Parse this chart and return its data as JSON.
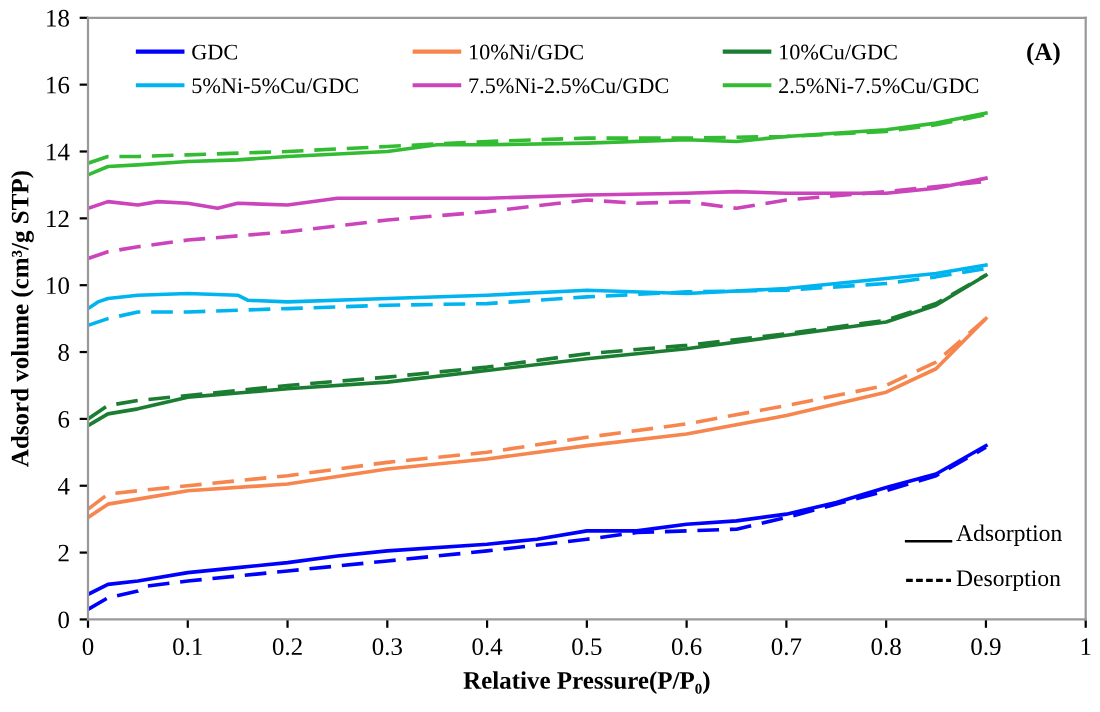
{
  "chart_data": {
    "type": "line",
    "xlabel": "Relative Pressure(P/P₀)",
    "ylabel": "Adsord volume (cm³/g STP)",
    "xlim": [
      0,
      1
    ],
    "xticks": [
      0,
      0.1,
      0.2,
      0.3,
      0.4,
      0.5,
      0.6,
      0.7,
      0.8,
      0.9,
      1
    ],
    "ylim": [
      0,
      18
    ],
    "yticks": [
      0,
      2,
      4,
      6,
      8,
      10,
      12,
      14,
      16,
      18
    ],
    "grid": false,
    "legend": "top",
    "marker": "none",
    "annotations": [
      "(A)",
      "Adsorption",
      "Desorption"
    ],
    "series": [
      {
        "name": "GDC",
        "color": "#0000ff",
        "line_style": "solid",
        "x": [
          0,
          0.02,
          0.05,
          0.1,
          0.15,
          0.2,
          0.25,
          0.3,
          0.4,
          0.45,
          0.5,
          0.55,
          0.6,
          0.65,
          0.7,
          0.75,
          0.8,
          0.85,
          0.9
        ],
        "values": [
          0.75,
          1.05,
          1.15,
          1.4,
          1.55,
          1.7,
          1.9,
          2.05,
          2.25,
          2.4,
          2.65,
          2.65,
          2.85,
          2.95,
          3.15,
          3.5,
          3.95,
          4.35,
          5.2
        ]
      },
      {
        "color": "#0000ff",
        "line_style": "dashed",
        "x": [
          0,
          0.02,
          0.05,
          0.06,
          0.1,
          0.2,
          0.3,
          0.4,
          0.5,
          0.55,
          0.65,
          0.7,
          0.8,
          0.85,
          0.9
        ],
        "values": [
          0.3,
          0.65,
          0.85,
          1.0,
          1.15,
          1.45,
          1.75,
          2.05,
          2.4,
          2.6,
          2.7,
          3.05,
          3.85,
          4.3,
          5.15
        ]
      },
      {
        "name": "10%Ni/GDC",
        "color": "#f7864e",
        "line_style": "solid",
        "x": [
          0,
          0.02,
          0.05,
          0.1,
          0.2,
          0.3,
          0.4,
          0.5,
          0.6,
          0.7,
          0.8,
          0.85,
          0.9
        ],
        "values": [
          3.05,
          3.45,
          3.6,
          3.85,
          4.05,
          4.5,
          4.8,
          5.2,
          5.55,
          6.1,
          6.8,
          7.5,
          9.0
        ]
      },
      {
        "color": "#f7864e",
        "line_style": "dashed",
        "x": [
          0,
          0.02,
          0.05,
          0.1,
          0.2,
          0.3,
          0.4,
          0.5,
          0.6,
          0.7,
          0.8,
          0.85,
          0.9
        ],
        "values": [
          3.3,
          3.75,
          3.85,
          4.0,
          4.3,
          4.7,
          5.0,
          5.45,
          5.85,
          6.4,
          7.0,
          7.7,
          9.0
        ]
      },
      {
        "name": "10%Cu/GDC",
        "color": "#1a7d32",
        "line_style": "solid",
        "x": [
          0,
          0.02,
          0.05,
          0.1,
          0.2,
          0.3,
          0.4,
          0.5,
          0.6,
          0.7,
          0.8,
          0.85,
          0.9
        ],
        "values": [
          5.8,
          6.15,
          6.3,
          6.65,
          6.9,
          7.1,
          7.45,
          7.8,
          8.1,
          8.5,
          8.9,
          9.4,
          10.3
        ]
      },
      {
        "color": "#1a7d32",
        "line_style": "dashed",
        "x": [
          0,
          0.02,
          0.05,
          0.1,
          0.2,
          0.3,
          0.4,
          0.5,
          0.6,
          0.7,
          0.8,
          0.85,
          0.9
        ],
        "values": [
          6.0,
          6.4,
          6.55,
          6.7,
          7.0,
          7.25,
          7.55,
          7.95,
          8.2,
          8.55,
          8.95,
          9.45,
          10.3
        ]
      },
      {
        "name": "5%Ni-5%Cu/GDC",
        "color": "#00b4f0",
        "line_style": "solid",
        "x": [
          0,
          0.01,
          0.02,
          0.05,
          0.1,
          0.15,
          0.16,
          0.2,
          0.3,
          0.4,
          0.5,
          0.6,
          0.7,
          0.8,
          0.85,
          0.9
        ],
        "values": [
          9.3,
          9.5,
          9.6,
          9.7,
          9.75,
          9.7,
          9.55,
          9.5,
          9.6,
          9.7,
          9.85,
          9.75,
          9.9,
          10.2,
          10.35,
          10.6
        ]
      },
      {
        "color": "#00b4f0",
        "line_style": "dashed",
        "x": [
          0,
          0.02,
          0.05,
          0.1,
          0.2,
          0.3,
          0.4,
          0.5,
          0.6,
          0.7,
          0.8,
          0.85,
          0.9
        ],
        "values": [
          8.8,
          9.0,
          9.2,
          9.2,
          9.3,
          9.4,
          9.45,
          9.65,
          9.8,
          9.85,
          10.05,
          10.25,
          10.5
        ]
      },
      {
        "name": "7.5%Ni-2.5%Cu/GDC",
        "color": "#cc44bb",
        "line_style": "solid",
        "x": [
          0,
          0.02,
          0.05,
          0.07,
          0.1,
          0.13,
          0.15,
          0.2,
          0.25,
          0.3,
          0.4,
          0.5,
          0.6,
          0.65,
          0.7,
          0.8,
          0.85,
          0.9
        ],
        "values": [
          12.3,
          12.5,
          12.4,
          12.5,
          12.45,
          12.3,
          12.45,
          12.4,
          12.6,
          12.6,
          12.6,
          12.7,
          12.75,
          12.8,
          12.75,
          12.75,
          12.9,
          13.2
        ]
      },
      {
        "color": "#cc44bb",
        "line_style": "dashed",
        "x": [
          0,
          0.02,
          0.05,
          0.1,
          0.2,
          0.3,
          0.4,
          0.5,
          0.55,
          0.6,
          0.65,
          0.7,
          0.8,
          0.9
        ],
        "values": [
          10.8,
          11.0,
          11.15,
          11.35,
          11.6,
          11.95,
          12.2,
          12.55,
          12.45,
          12.5,
          12.3,
          12.55,
          12.8,
          13.1
        ]
      },
      {
        "name": "2.5%Ni-7.5%Cu/GDC",
        "color": "#33bb33",
        "line_style": "solid",
        "x": [
          0,
          0.02,
          0.05,
          0.1,
          0.15,
          0.2,
          0.3,
          0.35,
          0.4,
          0.5,
          0.6,
          0.65,
          0.7,
          0.8,
          0.85,
          0.9
        ],
        "values": [
          13.3,
          13.55,
          13.6,
          13.7,
          13.75,
          13.85,
          14.0,
          14.2,
          14.2,
          14.25,
          14.35,
          14.3,
          14.45,
          14.65,
          14.85,
          15.15
        ]
      },
      {
        "color": "#33bb33",
        "line_style": "dashed",
        "x": [
          0,
          0.02,
          0.05,
          0.1,
          0.2,
          0.3,
          0.4,
          0.5,
          0.6,
          0.7,
          0.8,
          0.85,
          0.9
        ],
        "values": [
          13.65,
          13.85,
          13.85,
          13.9,
          14.0,
          14.15,
          14.3,
          14.4,
          14.4,
          14.45,
          14.6,
          14.8,
          15.1
        ]
      }
    ]
  }
}
